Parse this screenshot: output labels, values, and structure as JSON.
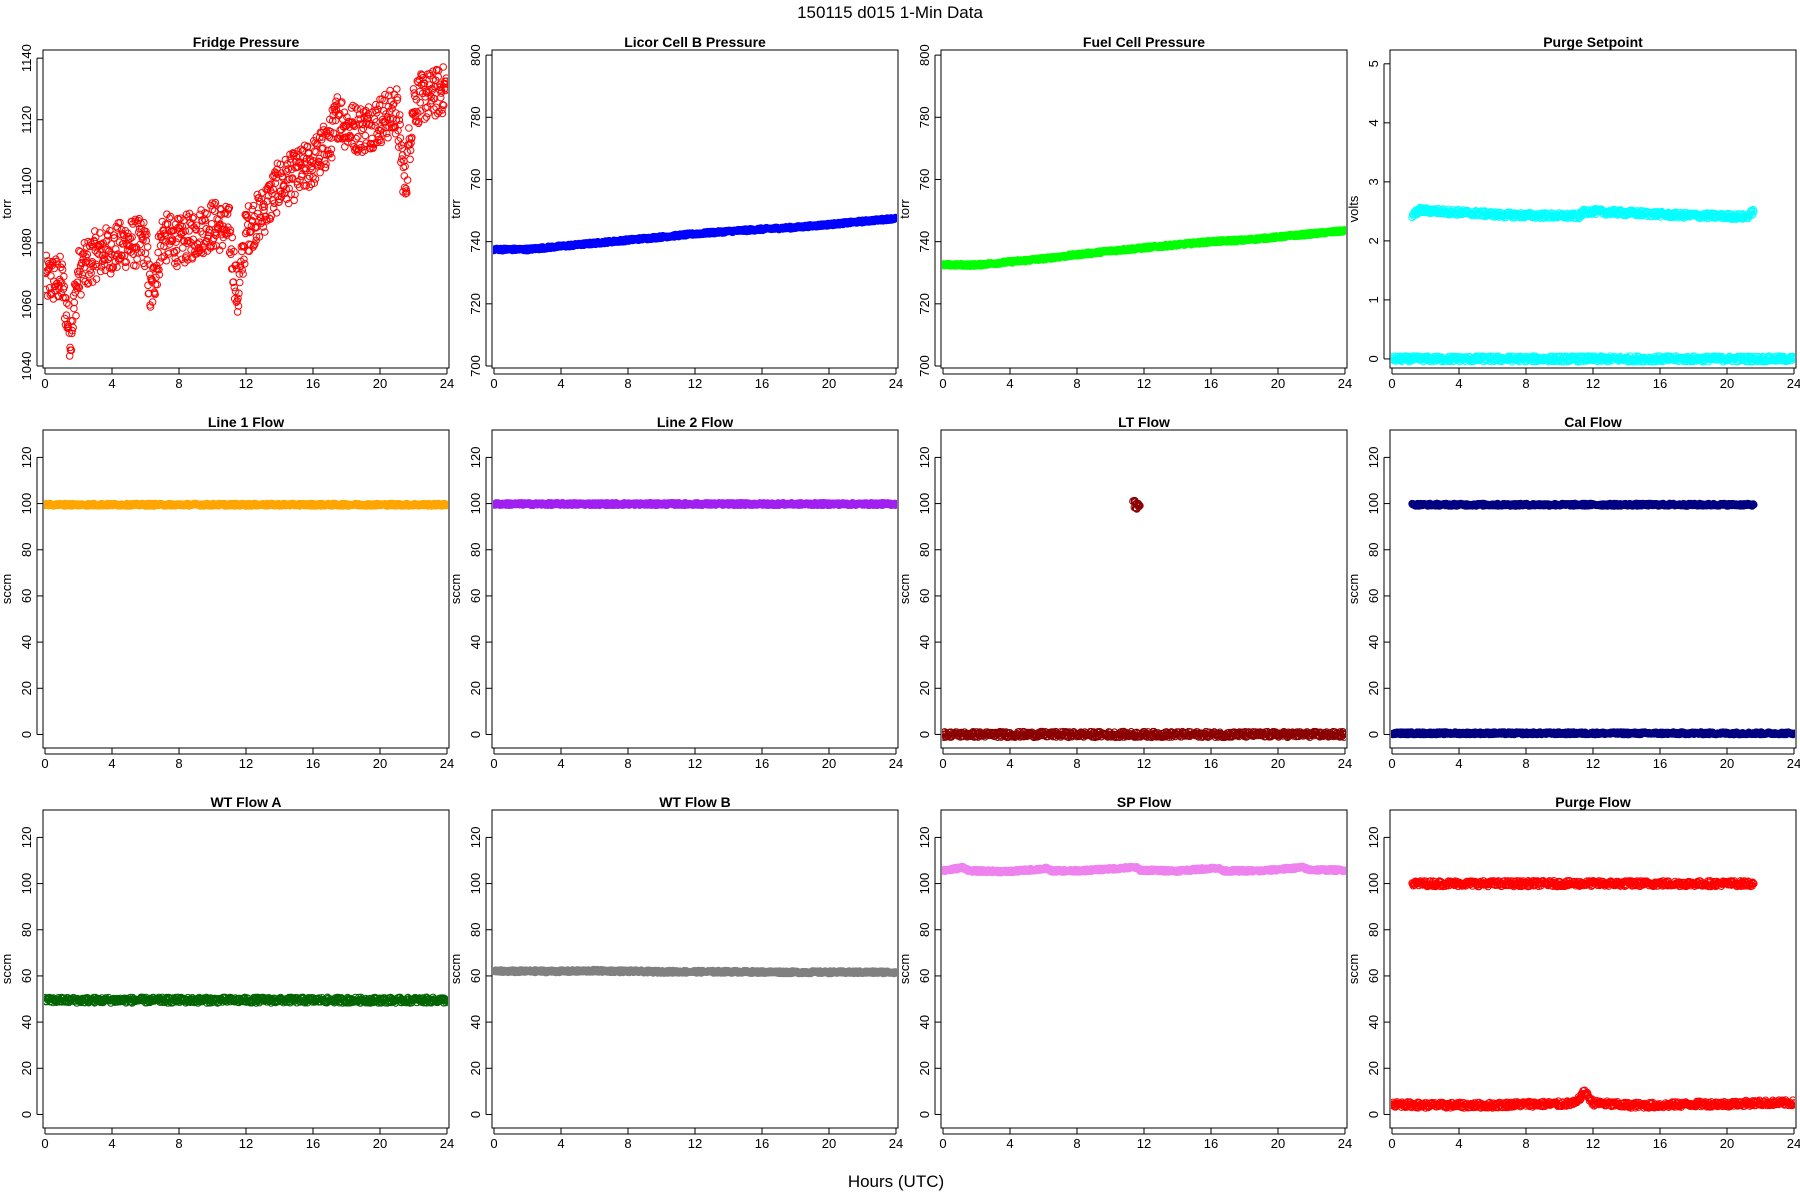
{
  "figure": {
    "title": "150115   d015   1-Min Data",
    "xlabel": "Hours (UTC)"
  },
  "chart_data": [
    {
      "type": "scatter",
      "title": "Fridge Pressure",
      "ylabel": "torr",
      "xlabel": "",
      "xlim": [
        0,
        24
      ],
      "ylim": [
        1040,
        1142
      ],
      "x_ticks": [
        0,
        4,
        8,
        12,
        16,
        20,
        24
      ],
      "y_ticks": [
        1040,
        1060,
        1080,
        1100,
        1120,
        1140
      ],
      "color": "#ff0000",
      "marker": "open-circle",
      "series": [
        {
          "name": "",
          "x": [
            0,
            1,
            1.5,
            2,
            3,
            4,
            5,
            6,
            6.3,
            7,
            8,
            9,
            10,
            11,
            11.5,
            12,
            13,
            14,
            15,
            16,
            17,
            17.5,
            18,
            19,
            20,
            21,
            21.5,
            22,
            23,
            24
          ],
          "y": [
            1068,
            1068,
            1050,
            1070,
            1076,
            1078,
            1080,
            1080,
            1062,
            1082,
            1080,
            1083,
            1086,
            1084,
            1062,
            1084,
            1090,
            1099,
            1102,
            1106,
            1113,
            1122,
            1118,
            1117,
            1120,
            1123,
            1098,
            1126,
            1128,
            1130
          ]
        }
      ]
    },
    {
      "type": "scatter",
      "title": "Licor Cell B Pressure",
      "ylabel": "torr",
      "xlabel": "",
      "xlim": [
        0,
        24
      ],
      "ylim": [
        700,
        801
      ],
      "x_ticks": [
        0,
        4,
        8,
        12,
        16,
        20,
        24
      ],
      "y_ticks": [
        700,
        720,
        740,
        760,
        780,
        800
      ],
      "color": "#0000ff",
      "marker": "filled",
      "series": [
        {
          "name": "",
          "x": [
            0,
            2,
            4,
            6,
            8,
            10,
            12,
            14,
            16,
            18,
            20,
            22,
            24
          ],
          "y": [
            737.5,
            737.5,
            738.5,
            739.5,
            740.5,
            741.5,
            742.5,
            743.3,
            744,
            744.6,
            745.5,
            746.5,
            747.5
          ]
        }
      ]
    },
    {
      "type": "scatter",
      "title": "Fuel Cell Pressure",
      "ylabel": "torr",
      "xlabel": "",
      "xlim": [
        0,
        24
      ],
      "ylim": [
        700,
        801
      ],
      "x_ticks": [
        0,
        4,
        8,
        12,
        16,
        20,
        24
      ],
      "y_ticks": [
        700,
        720,
        740,
        760,
        780,
        800
      ],
      "color": "#00ff00",
      "marker": "filled",
      "series": [
        {
          "name": "",
          "x": [
            0,
            2,
            4,
            6,
            8,
            10,
            12,
            14,
            16,
            18,
            20,
            22,
            24
          ],
          "y": [
            732.5,
            732.5,
            733.5,
            734.5,
            735.8,
            737,
            738,
            739,
            740,
            740.5,
            741.5,
            742.5,
            743.5
          ]
        }
      ]
    },
    {
      "type": "scatter",
      "title": "Purge Setpoint",
      "ylabel": "volts",
      "xlabel": "",
      "xlim": [
        0,
        24
      ],
      "ylim": [
        -0.12,
        5.2
      ],
      "x_ticks": [
        0,
        4,
        8,
        12,
        16,
        20,
        24
      ],
      "y_ticks": [
        0,
        1,
        2,
        3,
        4,
        5
      ],
      "color": "#00ffff",
      "marker": "open-circle",
      "series": [
        {
          "name": "",
          "x": [
            0,
            2,
            4,
            6,
            8,
            10,
            12,
            14,
            16,
            18,
            20,
            22,
            24
          ],
          "y": [
            0,
            0,
            0,
            0,
            0,
            0,
            0,
            0,
            0,
            0,
            0,
            0,
            0
          ]
        },
        {
          "name": "",
          "x": [
            1.2,
            1.4,
            1.6,
            6.1,
            6.3,
            11.2,
            11.4,
            11.7,
            16.2,
            16.4,
            21.2,
            21.4,
            21.6
          ],
          "y": [
            2.42,
            2.47,
            2.52,
            2.45,
            2.44,
            2.42,
            2.48,
            2.5,
            2.45,
            2.44,
            2.41,
            2.46,
            2.5
          ]
        }
      ]
    },
    {
      "type": "scatter",
      "title": "Line 1 Flow",
      "ylabel": "sccm",
      "xlabel": "",
      "xlim": [
        0,
        24
      ],
      "ylim": [
        -5,
        131
      ],
      "x_ticks": [
        0,
        4,
        8,
        12,
        16,
        20,
        24
      ],
      "y_ticks": [
        0,
        20,
        40,
        60,
        80,
        100,
        120
      ],
      "color": "#ffa500",
      "marker": "filled",
      "series": [
        {
          "name": "",
          "x": [
            0,
            4,
            8,
            12,
            16,
            20,
            24
          ],
          "y": [
            99.5,
            99.5,
            99.5,
            99.5,
            99.5,
            99.5,
            99.5
          ]
        }
      ]
    },
    {
      "type": "scatter",
      "title": "Line 2 Flow",
      "ylabel": "sccm",
      "xlabel": "",
      "xlim": [
        0,
        24
      ],
      "ylim": [
        -5,
        131
      ],
      "x_ticks": [
        0,
        4,
        8,
        12,
        16,
        20,
        24
      ],
      "y_ticks": [
        0,
        20,
        40,
        60,
        80,
        100,
        120
      ],
      "color": "#a020f0",
      "marker": "filled",
      "series": [
        {
          "name": "",
          "x": [
            0,
            4,
            8,
            12,
            16,
            20,
            24
          ],
          "y": [
            99.8,
            99.8,
            99.8,
            99.8,
            99.8,
            99.8,
            99.8
          ]
        }
      ]
    },
    {
      "type": "scatter",
      "title": "LT Flow",
      "ylabel": "sccm",
      "xlabel": "",
      "xlim": [
        0,
        24
      ],
      "ylim": [
        -5,
        131
      ],
      "x_ticks": [
        0,
        4,
        8,
        12,
        16,
        20,
        24
      ],
      "y_ticks": [
        0,
        20,
        40,
        60,
        80,
        100,
        120
      ],
      "color": "#8b0000",
      "marker": "open-circle",
      "series": [
        {
          "name": "",
          "x": [
            0,
            2,
            4,
            6,
            8,
            10,
            12,
            14,
            16,
            18,
            20,
            22,
            24
          ],
          "y": [
            0,
            0,
            0,
            0,
            0,
            0,
            0,
            0,
            0,
            0,
            0,
            0,
            0
          ]
        },
        {
          "name": "",
          "x": [
            11.4,
            11.5,
            11.6,
            11.7
          ],
          "y": [
            101,
            98,
            100,
            99
          ]
        }
      ]
    },
    {
      "type": "scatter",
      "title": "Cal Flow",
      "ylabel": "sccm",
      "xlabel": "",
      "xlim": [
        0,
        24
      ],
      "ylim": [
        -5,
        131
      ],
      "x_ticks": [
        0,
        4,
        8,
        12,
        16,
        20,
        24
      ],
      "y_ticks": [
        0,
        20,
        40,
        60,
        80,
        100,
        120
      ],
      "color": "#000080",
      "marker": "filled",
      "series": [
        {
          "name": "",
          "x": [
            0,
            2,
            4,
            6,
            8,
            10,
            12,
            14,
            16,
            18,
            20,
            22,
            24
          ],
          "y": [
            0.5,
            0.5,
            0.5,
            0.5,
            0.5,
            0.5,
            0.5,
            0.5,
            0.5,
            0.5,
            0.5,
            0.5,
            0.5
          ]
        },
        {
          "name": "",
          "x": [
            1.2,
            1.4,
            1.6,
            6.1,
            6.3,
            11.2,
            11.4,
            11.7,
            16.2,
            16.4,
            21.2,
            21.4,
            21.6
          ],
          "y": [
            99.5,
            99.5,
            99.5,
            99.5,
            99.5,
            99.5,
            99.5,
            99.5,
            99.5,
            99.5,
            99.5,
            99.5,
            99.5
          ]
        }
      ]
    },
    {
      "type": "scatter",
      "title": "WT Flow A",
      "ylabel": "sccm",
      "xlabel": "",
      "xlim": [
        0,
        24
      ],
      "ylim": [
        -5,
        131
      ],
      "x_ticks": [
        0,
        4,
        8,
        12,
        16,
        20,
        24
      ],
      "y_ticks": [
        0,
        20,
        40,
        60,
        80,
        100,
        120
      ],
      "color": "#006400",
      "marker": "open-circle",
      "series": [
        {
          "name": "",
          "x": [
            0,
            2,
            4,
            6,
            8,
            10,
            12,
            14,
            16,
            18,
            20,
            22,
            24
          ],
          "y": [
            49.5,
            49.5,
            49.5,
            49.5,
            49.5,
            49.5,
            49.5,
            49.5,
            49.5,
            49.5,
            49.5,
            49.5,
            49.5
          ]
        }
      ]
    },
    {
      "type": "scatter",
      "title": "WT Flow B",
      "ylabel": "sccm",
      "xlabel": "",
      "xlim": [
        0,
        24
      ],
      "ylim": [
        -5,
        131
      ],
      "x_ticks": [
        0,
        4,
        8,
        12,
        16,
        20,
        24
      ],
      "y_ticks": [
        0,
        20,
        40,
        60,
        80,
        100,
        120
      ],
      "color": "#808080",
      "marker": "filled",
      "series": [
        {
          "name": "",
          "x": [
            0,
            2,
            4,
            6,
            8,
            10,
            12,
            14,
            16,
            18,
            20,
            22,
            24
          ],
          "y": [
            62,
            62,
            62,
            62.2,
            62,
            61.8,
            61.8,
            61.8,
            61.7,
            61.6,
            61.6,
            61.6,
            61.6
          ]
        }
      ]
    },
    {
      "type": "scatter",
      "title": "SP Flow",
      "ylabel": "sccm",
      "xlabel": "",
      "xlim": [
        0,
        24
      ],
      "ylim": [
        -5,
        131
      ],
      "x_ticks": [
        0,
        4,
        8,
        12,
        16,
        20,
        24
      ],
      "y_ticks": [
        0,
        20,
        40,
        60,
        80,
        100,
        120
      ],
      "color": "#ee82ee",
      "marker": "filled",
      "series": [
        {
          "name": "",
          "x": [
            0,
            1.2,
            1.6,
            4,
            6.2,
            6.5,
            8,
            11.5,
            11.8,
            14,
            16.4,
            16.7,
            19,
            21.5,
            21.8,
            24
          ],
          "y": [
            105.5,
            107,
            105.5,
            105.2,
            106.5,
            105.5,
            105.5,
            107,
            105.8,
            105.5,
            106.8,
            105.5,
            105.5,
            107,
            106,
            105.8
          ]
        }
      ]
    },
    {
      "type": "scatter",
      "title": "Purge Flow",
      "ylabel": "sccm",
      "xlabel": "",
      "xlim": [
        0,
        24
      ],
      "ylim": [
        -5,
        131
      ],
      "x_ticks": [
        0,
        4,
        8,
        12,
        16,
        20,
        24
      ],
      "y_ticks": [
        0,
        20,
        40,
        60,
        80,
        100,
        120
      ],
      "color": "#ff0000",
      "marker": "open-circle",
      "series": [
        {
          "name": "",
          "x": [
            0,
            2,
            4,
            6,
            8,
            10,
            11,
            11.5,
            12,
            14,
            16,
            18,
            20,
            22,
            24
          ],
          "y": [
            4.5,
            4,
            4,
            4,
            4.5,
            4.5,
            5,
            10,
            5,
            4,
            4,
            4.5,
            4.5,
            5,
            5
          ]
        },
        {
          "name": "",
          "x": [
            1.2,
            1.4,
            1.6,
            6.1,
            6.3,
            11.2,
            11.4,
            11.7,
            16.2,
            16.4,
            21.2,
            21.4,
            21.6
          ],
          "y": [
            100,
            100,
            100,
            100,
            100,
            100,
            100,
            100,
            100,
            100,
            100,
            100,
            100
          ]
        }
      ]
    }
  ]
}
